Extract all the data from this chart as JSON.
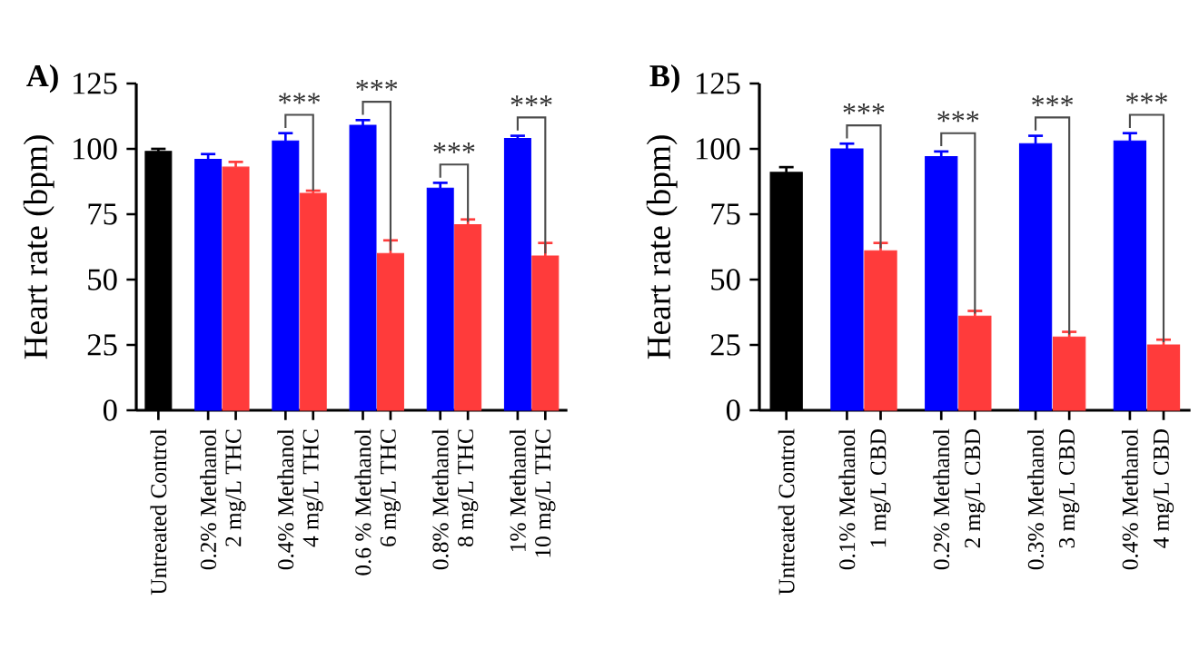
{
  "chart_data": [
    {
      "type": "bar",
      "title": "A)",
      "ylabel": "Heart rate (bpm)",
      "categories": [
        "Untreated Control",
        "0.2% Methanol",
        "2 mg/L THC",
        "0.4% Methanol",
        "4 mg/L THC",
        "0.6 % Methanol",
        "6 mg/L THC",
        "0.8% Methanol",
        "8 mg/L THC",
        "1% Methanol",
        "10 mg/L THC"
      ],
      "series": [
        {
          "color": "#000000",
          "values": [
            99,
            null,
            null,
            null,
            null,
            null,
            null,
            null,
            null,
            null,
            null
          ],
          "errors": [
            1,
            null,
            null,
            null,
            null,
            null,
            null,
            null,
            null,
            null,
            null
          ]
        },
        {
          "color": "#0000ff",
          "values": [
            null,
            96,
            null,
            103,
            null,
            109,
            null,
            85,
            null,
            104,
            null
          ],
          "errors": [
            null,
            2,
            null,
            3,
            null,
            2,
            null,
            2,
            null,
            1,
            null
          ]
        },
        {
          "color": "#ff3b3b",
          "values": [
            null,
            null,
            93,
            null,
            83,
            null,
            60,
            null,
            71,
            null,
            59
          ],
          "errors": [
            null,
            null,
            2,
            null,
            1,
            null,
            5,
            null,
            2,
            null,
            5
          ]
        }
      ],
      "ylim": [
        0,
        125
      ],
      "yticks": [
        0,
        25,
        50,
        75,
        100,
        125
      ],
      "annotations": [
        {
          "text": "***",
          "x": "4 mg/L THC",
          "y": 83
        },
        {
          "text": "***",
          "x": "6 mg/L THC",
          "y": 60
        },
        {
          "text": "***",
          "x": "8 mg/L THC",
          "y": 71
        },
        {
          "text": "***",
          "x": "10 mg/L THC",
          "y": 59
        }
      ]
    },
    {
      "type": "bar",
      "title": "B)",
      "ylabel": "Heart rate (bpm)",
      "categories": [
        "Untreated Control",
        "0.1% Methanol",
        "1 mg/L CBD",
        "0.2% Methanol",
        "2 mg/L CBD",
        "0.3% Methanol",
        "3 mg/L CBD",
        "0.4% Methanol",
        "4 mg/L CBD"
      ],
      "series": [
        {
          "color": "#000000",
          "values": [
            91,
            null,
            null,
            null,
            null,
            null,
            null,
            null,
            null
          ],
          "errors": [
            2,
            null,
            null,
            null,
            null,
            null,
            null,
            null,
            null
          ]
        },
        {
          "color": "#0000ff",
          "values": [
            null,
            100,
            null,
            97,
            null,
            102,
            null,
            103,
            null
          ],
          "errors": [
            null,
            2,
            null,
            2,
            null,
            3,
            null,
            3,
            null
          ]
        },
        {
          "color": "#ff3b3b",
          "values": [
            null,
            null,
            61,
            null,
            36,
            null,
            28,
            null,
            25
          ],
          "errors": [
            null,
            null,
            3,
            null,
            2,
            null,
            2,
            null,
            2
          ]
        }
      ],
      "ylim": [
        0,
        125
      ],
      "yticks": [
        0,
        25,
        50,
        75,
        100,
        125
      ],
      "annotations": [
        {
          "text": "***",
          "x": "1 mg/L CBD",
          "y": 61
        },
        {
          "text": "***",
          "x": "2 mg/L CBD",
          "y": 36
        },
        {
          "text": "***",
          "x": "3 mg/L CBD",
          "y": 28
        },
        {
          "text": "***",
          "x": "4 mg/L CBD",
          "y": 25
        }
      ]
    }
  ]
}
